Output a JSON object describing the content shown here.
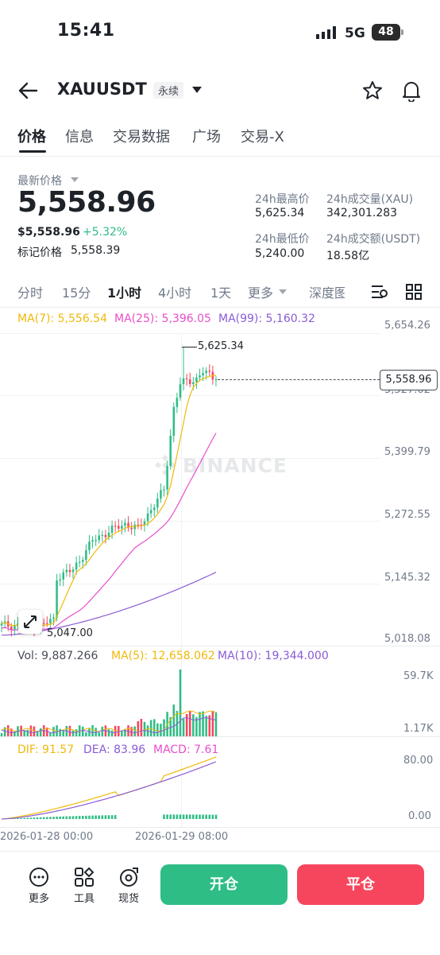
{
  "status": {
    "time": "15:41",
    "network": "5G",
    "battery": "48"
  },
  "header": {
    "symbol": "XAUUSDT",
    "contract": "永续"
  },
  "tabs": [
    "价格",
    "信息",
    "交易数据",
    "广场",
    "交易-X"
  ],
  "ticker": {
    "last_label": "最新价格",
    "last_price": "5,558.96",
    "usd_price": "$5,558.96",
    "change": "+5.32%",
    "mark_label": "标记价格",
    "mark_price": "5,558.39",
    "high_label": "24h最高价",
    "high": "5,625.34",
    "vol_label": "24h成交量(XAU)",
    "vol": "342,301.283",
    "low_label": "24h最低价",
    "low": "5,240.00",
    "amount_label": "24h成交额(USDT)",
    "amount": "18.58亿"
  },
  "intervals": [
    "分时",
    "15分",
    "1小时",
    "4小时",
    "1天",
    "更多",
    "深度图"
  ],
  "ma": {
    "ma7": "MA(7): 5,556.54",
    "ma25": "MA(25): 5,396.05",
    "ma99": "MA(99): 5,160.32"
  },
  "price_axis": [
    "5,654.26",
    "5,527.02",
    "5,399.79",
    "5,272.55",
    "5,145.32",
    "5,018.08"
  ],
  "current_tag": "5,558.96",
  "annotations": {
    "high": "5,625.34",
    "low": "5,047.00"
  },
  "watermark": "BINANCE",
  "volume": {
    "vol": "Vol: 9,887.266",
    "ma5": "MA(5): 12,658.062",
    "ma10": "MA(10): 19,344.000",
    "axis_top": "59.7K",
    "axis_bottom": "1.17K"
  },
  "macd": {
    "dif": "DIF: 91.57",
    "dea": "DEA: 83.96",
    "macd": "MACD: 7.61",
    "axis_top": "80.00",
    "axis_bottom": "0.00"
  },
  "time_axis": [
    "2026-01-28 00:00",
    "2026-01-29 08:00"
  ],
  "tools": [
    "更多",
    "工具",
    "现货"
  ],
  "actions": {
    "open": "开仓",
    "close": "平仓"
  },
  "colors": {
    "up": "#2ebd85",
    "down": "#f6465d",
    "ma7": "#f0b90b",
    "ma25": "#e84fcb",
    "ma99": "#8a5cd6",
    "brand": "#f0b90b"
  }
}
